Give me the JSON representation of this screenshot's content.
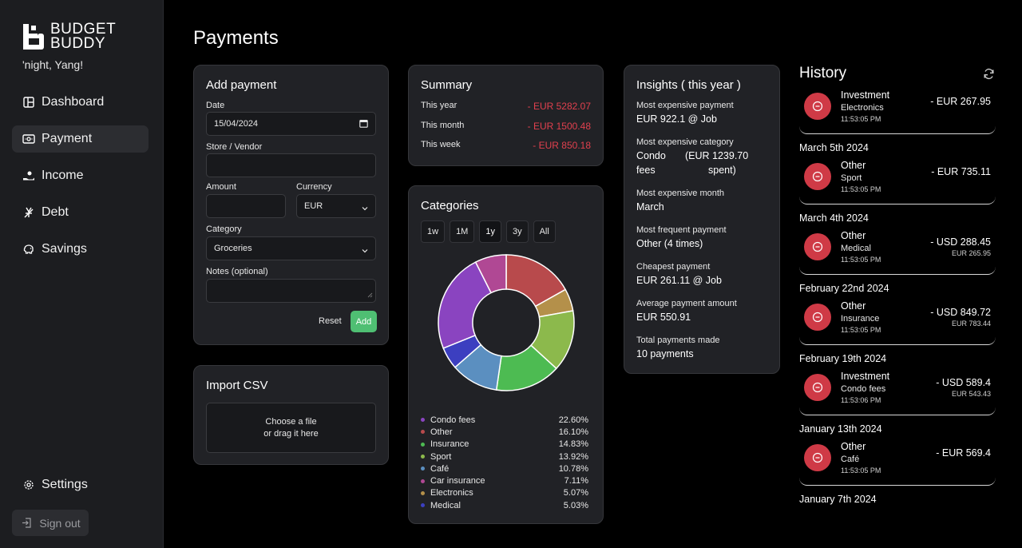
{
  "brand": {
    "line1": "BUDGET",
    "line2": "BUDDY"
  },
  "greeting": "'night, Yang!",
  "nav": [
    {
      "label": "Dashboard",
      "icon": "dashboard-icon"
    },
    {
      "label": "Payment",
      "icon": "payment-icon",
      "active": true
    },
    {
      "label": "Income",
      "icon": "income-icon"
    },
    {
      "label": "Debt",
      "icon": "debt-icon"
    },
    {
      "label": "Savings",
      "icon": "savings-icon"
    }
  ],
  "settings_label": "Settings",
  "signout_label": "Sign out",
  "page_title": "Payments",
  "add_payment": {
    "title": "Add payment",
    "date_label": "Date",
    "date_value": "15/04/2024",
    "vendor_label": "Store / Vendor",
    "amount_label": "Amount",
    "currency_label": "Currency",
    "currency_value": "EUR",
    "category_label": "Category",
    "category_value": "Groceries",
    "notes_label": "Notes (optional)",
    "reset_label": "Reset",
    "add_label": "Add"
  },
  "import_csv": {
    "title": "Import CSV",
    "drop_line1": "Choose a file",
    "drop_line2": "or drag it here"
  },
  "summary": {
    "title": "Summary",
    "rows": [
      {
        "label": "This year",
        "value": "- EUR 5282.07"
      },
      {
        "label": "This month",
        "value": "- EUR 1500.48"
      },
      {
        "label": "This week",
        "value": "- EUR 850.18"
      }
    ]
  },
  "categories": {
    "title": "Categories",
    "ranges": [
      "1w",
      "1M",
      "1y",
      "3y",
      "All"
    ],
    "active_range": "1y"
  },
  "chart_data": {
    "type": "pie",
    "donut": true,
    "categories": [
      "Condo fees",
      "Other",
      "Insurance",
      "Sport",
      "Café",
      "Car insurance",
      "Electronics",
      "Medical"
    ],
    "values": [
      22.6,
      16.1,
      14.83,
      13.92,
      10.78,
      7.11,
      5.07,
      5.03
    ],
    "labels": [
      "22.60%",
      "16.10%",
      "14.83%",
      "13.92%",
      "10.78%",
      "7.11%",
      "5.07%",
      "5.03%"
    ],
    "colors": [
      "#8a44c0",
      "#b84a4c",
      "#4dbb52",
      "#8cb94c",
      "#5b8fc0",
      "#b04894",
      "#b4904a",
      "#3c3fc0"
    ],
    "draw_order": [
      "Other",
      "Electronics",
      "Sport",
      "Insurance",
      "Café",
      "Medical",
      "Condo fees",
      "Car insurance"
    ],
    "draw_colors": {
      "Other": "#b84a4c",
      "Electronics": "#b4904a",
      "Sport": "#8cb94c",
      "Insurance": "#4dbb52",
      "Café": "#5b8fc0",
      "Medical": "#3c3fc0",
      "Condo fees": "#8a44c0",
      "Car insurance": "#b04894",
      "Café_extra": "#63c09a"
    },
    "legend_placement": "bottom"
  },
  "insights": {
    "title": "Insights ( this year )",
    "rows": [
      {
        "label": "Most expensive payment",
        "value": "EUR 922.1 @ Job"
      },
      {
        "label": "Most expensive category",
        "value_a": "Condo",
        "value_b": "(EUR 1239.70",
        "value_c": "fees",
        "value_d": "spent)"
      },
      {
        "label": "Most expensive month",
        "value": "March"
      },
      {
        "label": "Most frequent payment",
        "value": "Other (4 times)"
      },
      {
        "label": "Cheapest payment",
        "value": "EUR 261.11 @ Job"
      },
      {
        "label": "Average payment amount",
        "value": "EUR 550.91"
      },
      {
        "label": "Total payments made",
        "value": "10 payments"
      }
    ]
  },
  "history": {
    "title": "History",
    "groups": [
      {
        "date": "",
        "items": [
          {
            "type": "Investment",
            "category": "Electronics",
            "time": "11:53:05 PM",
            "amount": "- EUR 267.95",
            "sub": ""
          }
        ]
      },
      {
        "date": "March 5th 2024",
        "items": [
          {
            "type": "Other",
            "category": "Sport",
            "time": "11:53:05 PM",
            "amount": "- EUR 735.11",
            "sub": ""
          }
        ]
      },
      {
        "date": "March 4th 2024",
        "items": [
          {
            "type": "Other",
            "category": "Medical",
            "time": "11:53:05 PM",
            "amount": "- USD 288.45",
            "sub": "EUR 265.95"
          }
        ]
      },
      {
        "date": "February 22nd 2024",
        "items": [
          {
            "type": "Other",
            "category": "Insurance",
            "time": "11:53:05 PM",
            "amount": "- USD 849.72",
            "sub": "EUR 783.44"
          }
        ]
      },
      {
        "date": "February 19th 2024",
        "items": [
          {
            "type": "Investment",
            "category": "Condo fees",
            "time": "11:53:06 PM",
            "amount": "- USD 589.4",
            "sub": "EUR 543.43"
          }
        ]
      },
      {
        "date": "January 13th 2024",
        "items": [
          {
            "type": "Other",
            "category": "Café",
            "time": "11:53:05 PM",
            "amount": "- EUR 569.4",
            "sub": ""
          }
        ]
      },
      {
        "date": "January 7th 2024",
        "items": []
      }
    ]
  }
}
